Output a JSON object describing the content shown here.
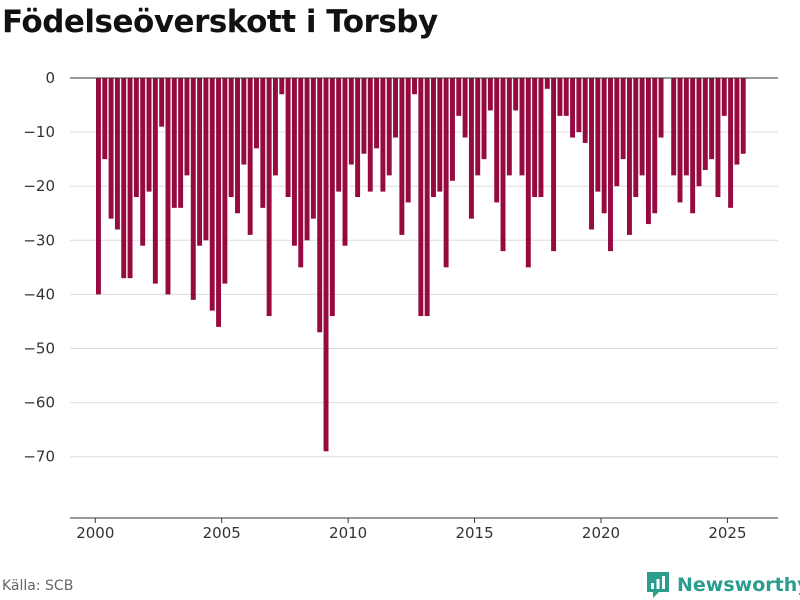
{
  "title": "Födelseöverskott i Torsby",
  "source": "Källa: SCB",
  "brand": {
    "name": "Newsworthy",
    "icon": "newsworthy-logo-icon",
    "color": "#2a9d8f"
  },
  "colors": {
    "bar": "#960a40",
    "grid": "#dddddd",
    "zero_line": "#333333"
  },
  "chart_data": {
    "type": "bar",
    "title": "Födelseöverskott i Torsby",
    "xlabel": "",
    "ylabel": "",
    "ylim": [
      -78,
      0
    ],
    "xlim": [
      1999.0,
      2027.0
    ],
    "y_ticks": [
      0,
      -10,
      -20,
      -30,
      -40,
      -50,
      -60,
      -70
    ],
    "y_tick_labels": [
      "0",
      "−10",
      "−20",
      "−30",
      "−40",
      "−50",
      "−60",
      "−70"
    ],
    "x_ticks": [
      2000,
      2005,
      2010,
      2015,
      2020,
      2025
    ],
    "x_tick_labels": [
      "2000",
      "2005",
      "2010",
      "2015",
      "2020",
      "2025"
    ],
    "grid": true,
    "frequency": "quarterly",
    "start_year": 2000,
    "values": [
      -40,
      -15,
      -26,
      -28,
      -37,
      -37,
      -22,
      -31,
      -21,
      -38,
      -9,
      -40,
      -24,
      -24,
      -18,
      -41,
      -31,
      -30,
      -43,
      -46,
      -38,
      -22,
      -25,
      -16,
      -29,
      -13,
      -24,
      -44,
      -18,
      -3,
      -22,
      -31,
      -35,
      -30,
      -26,
      -47,
      -69,
      -44,
      -21,
      -31,
      -16,
      -22,
      -14,
      -21,
      -13,
      -21,
      -18,
      -11,
      -29,
      -23,
      -3,
      -44,
      -44,
      -22,
      -21,
      -35,
      -19,
      -7,
      -11,
      -26,
      -18,
      -15,
      -6,
      -23,
      -32,
      -18,
      -6,
      -18,
      -35,
      -22,
      -22,
      -2,
      -32,
      -7,
      -7,
      -11,
      -10,
      -12,
      -28,
      -21,
      -25,
      -32,
      -20,
      -15,
      -29,
      -22,
      -18,
      -27,
      -25,
      -11,
      0,
      -18,
      -23,
      -18,
      -25,
      -20,
      -17,
      -15,
      -22,
      -7,
      -24,
      -16,
      -14
    ]
  }
}
